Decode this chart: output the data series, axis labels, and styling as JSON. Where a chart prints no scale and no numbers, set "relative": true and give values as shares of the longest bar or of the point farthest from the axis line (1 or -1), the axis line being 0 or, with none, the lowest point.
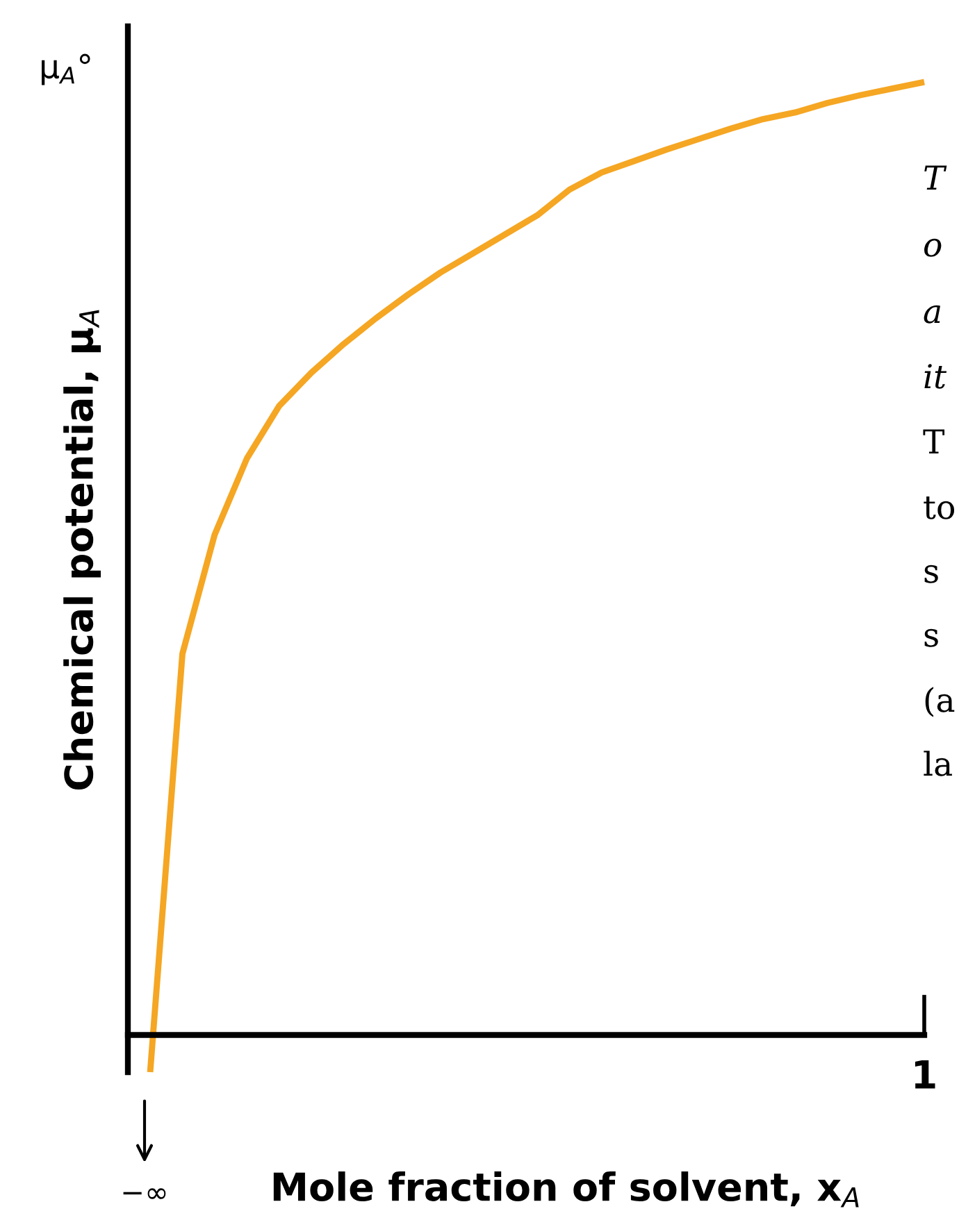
{
  "chart_data": {
    "type": "line",
    "relative": true,
    "xlabel": "Mole fraction of solvent, x$_{A}$",
    "ylabel": "Chemical potential, μ$_{A}$",
    "annotations": [
      "μ$_{A}$°",
      "−∞",
      "1",
      "T",
      "o",
      "a",
      "it",
      "T",
      "to",
      "s",
      "s",
      "(a",
      "la"
    ],
    "categories": [
      null,
      null,
      null,
      null,
      null,
      null,
      null,
      null,
      null,
      null,
      null,
      null,
      null,
      null,
      null,
      null,
      null,
      null,
      null,
      null,
      null,
      null,
      null,
      null,
      null
    ],
    "series": [
      {
        "color": "#f5a623",
        "values": [
          -0.039,
          0.4,
          0.525,
          0.605,
          0.66,
          0.695,
          0.725,
          0.752,
          0.777,
          0.8,
          0.82,
          0.84,
          0.86,
          0.887,
          0.905,
          0.917,
          0.929,
          0.94,
          0.951,
          0.961,
          0.968,
          0.978,
          0.986,
          0.993,
          1.0
        ]
      }
    ],
    "legend": false,
    "marker": "none",
    "line_style": "solid"
  }
}
